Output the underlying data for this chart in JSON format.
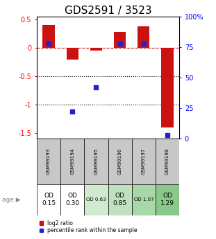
{
  "title": "GDS2591 / 3523",
  "samples": [
    "GSM99193",
    "GSM99194",
    "GSM99195",
    "GSM99196",
    "GSM99197",
    "GSM99198"
  ],
  "log2_ratio": [
    0.4,
    -0.2,
    -0.05,
    0.28,
    0.38,
    -1.4
  ],
  "percentile_rank": [
    0.78,
    0.22,
    0.42,
    0.78,
    0.78,
    0.03
  ],
  "age_labels": [
    "OD\n0.15",
    "OD\n0.30",
    "OD 0.63",
    "OD\n0.85",
    "OD 1.07",
    "OD\n1.29"
  ],
  "age_fontsize_large": [
    true,
    true,
    false,
    true,
    false,
    true
  ],
  "age_bg_colors": [
    "#ffffff",
    "#ffffff",
    "#d0ead0",
    "#c0e0c0",
    "#a8d8a8",
    "#88c888"
  ],
  "bar_color": "#cc1111",
  "dot_color": "#2222cc",
  "ylim": [
    -1.6,
    0.55
  ],
  "y2lim": [
    0,
    1.0
  ],
  "y2ticks": [
    0,
    0.25,
    0.5,
    0.75,
    1.0
  ],
  "y2ticklabels": [
    "0",
    "25",
    "50",
    "75",
    "100%"
  ],
  "yticks": [
    -1.5,
    -1.0,
    -0.5,
    0,
    0.5
  ],
  "ytick_labels": [
    "-1.5",
    "-1",
    "-0.5",
    "0",
    "0.5"
  ],
  "hline_y": 0,
  "dotlines": [
    -0.5,
    -1.0
  ],
  "gsm_bg_color": "#c8c8c8",
  "title_fontsize": 11,
  "bar_width": 0.5,
  "legend_items": [
    "log2 ratio",
    "percentile rank within the sample"
  ]
}
